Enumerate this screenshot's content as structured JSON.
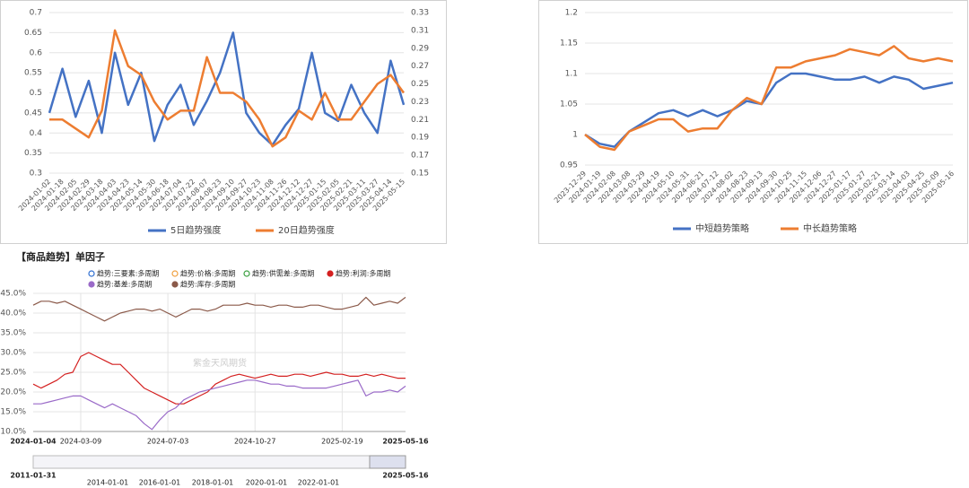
{
  "chart_data": [
    {
      "type": "line",
      "categories": [
        "2024-01-02",
        "2024-01-18",
        "2024-02-05",
        "2024-02-29",
        "2024-03-18",
        "2024-04-03",
        "2024-04-23",
        "2024-05-14",
        "2024-05-30",
        "2024-06-18",
        "2024-07-04",
        "2024-07-22",
        "2024-08-07",
        "2024-08-23",
        "2024-09-10",
        "2024-09-27",
        "2024-10-23",
        "2024-11-08",
        "2024-11-26",
        "2024-12-12",
        "2024-12-27",
        "2025-01-15",
        "2025-02-05",
        "2025-02-21",
        "2025-03-11",
        "2025-03-27",
        "2025-04-14",
        "2025-05-15"
      ],
      "series": [
        {
          "name": "5日趋势强度",
          "color": "#4472c4",
          "values": [
            0.45,
            0.56,
            0.44,
            0.53,
            0.4,
            0.6,
            0.47,
            0.55,
            0.38,
            0.47,
            0.52,
            0.42,
            0.48,
            0.55,
            0.65,
            0.45,
            0.4,
            0.37,
            0.42,
            0.46,
            0.6,
            0.45,
            0.43,
            0.52,
            0.45,
            0.4,
            0.58,
            0.47
          ]
        },
        {
          "name": "20日趋势强度",
          "color": "#ed7d31",
          "axis": "y2",
          "values": [
            0.21,
            0.21,
            0.2,
            0.19,
            0.22,
            0.31,
            0.27,
            0.26,
            0.23,
            0.21,
            0.22,
            0.22,
            0.28,
            0.24,
            0.24,
            0.23,
            0.21,
            0.18,
            0.19,
            0.22,
            0.21,
            0.24,
            0.21,
            0.21,
            0.23,
            0.25,
            0.26,
            0.24
          ]
        }
      ],
      "ylim": [
        0.3,
        0.7
      ],
      "yticks": [
        0.3,
        0.35,
        0.4,
        0.45,
        0.5,
        0.55,
        0.6,
        0.65,
        0.7
      ],
      "y2lim": [
        0.15,
        0.33
      ],
      "y2ticks": [
        0.15,
        0.17,
        0.19,
        0.21,
        0.23,
        0.25,
        0.27,
        0.29,
        0.31,
        0.33
      ],
      "grid": true,
      "legend": "bottom"
    },
    {
      "type": "line",
      "categories": [
        "2023-12-29",
        "2024-01-19",
        "2024-02-08",
        "2024-03-08",
        "2024-03-29",
        "2024-04-19",
        "2024-05-10",
        "2024-05-31",
        "2024-06-21",
        "2024-07-12",
        "2024-08-02",
        "2024-08-23",
        "2024-09-13",
        "2024-09-30",
        "2024-10-25",
        "2024-11-15",
        "2024-12-06",
        "2024-12-27",
        "2025-01-17",
        "2025-01-27",
        "2025-02-21",
        "2025-03-14",
        "2025-04-03",
        "2025-04-25",
        "2025-05-09",
        "2025-05-16"
      ],
      "series": [
        {
          "name": "中短趋势策略",
          "color": "#4472c4",
          "values": [
            1,
            0.985,
            0.98,
            1.005,
            1.02,
            1.035,
            1.04,
            1.03,
            1.04,
            1.03,
            1.04,
            1.055,
            1.05,
            1.085,
            1.1,
            1.1,
            1.095,
            1.09,
            1.09,
            1.095,
            1.085,
            1.095,
            1.09,
            1.075,
            1.08,
            1.085
          ]
        },
        {
          "name": "中长趋势策略",
          "color": "#ed7d31",
          "values": [
            1,
            0.98,
            0.975,
            1.005,
            1.015,
            1.025,
            1.025,
            1.005,
            1.01,
            1.01,
            1.04,
            1.06,
            1.05,
            1.11,
            1.11,
            1.12,
            1.125,
            1.13,
            1.14,
            1.135,
            1.13,
            1.145,
            1.125,
            1.12,
            1.125,
            1.12
          ]
        }
      ],
      "ylim": [
        0.95,
        1.2
      ],
      "yticks": [
        0.95,
        1,
        1.05,
        1.1,
        1.15,
        1.2
      ],
      "grid": true,
      "legend": "bottom"
    },
    {
      "type": "line",
      "title": "【商品趋势】单因子",
      "categories": [
        "2024-01-04",
        null,
        null,
        null,
        null,
        null,
        "2024-03-09",
        null,
        null,
        null,
        null,
        null,
        null,
        null,
        null,
        null,
        null,
        "2024-07-03",
        null,
        null,
        null,
        null,
        null,
        null,
        null,
        null,
        null,
        null,
        "2024-10-27",
        null,
        null,
        null,
        null,
        null,
        null,
        null,
        null,
        null,
        null,
        "2025-02-19",
        null,
        null,
        null,
        null,
        null,
        null,
        null,
        "2025-05-16"
      ],
      "series": [
        {
          "name": "趋势:三要素:多周期",
          "color": "#2f6fd1",
          "visible": false
        },
        {
          "name": "趋势:价格:多周期",
          "color": "#f0a040",
          "visible": false
        },
        {
          "name": "趋势:供需差:多周期",
          "color": "#3aa040",
          "visible": false
        },
        {
          "name": "趋势:利润:多周期",
          "color": "#d42020",
          "values": [
            22,
            21,
            22,
            23,
            24.5,
            25,
            29,
            30,
            29,
            28,
            27,
            27,
            25,
            23,
            21,
            20,
            19,
            18,
            17,
            17,
            18,
            19,
            20,
            22,
            23,
            24,
            24.5,
            24,
            23.5,
            24,
            24.5,
            24,
            24,
            24.5,
            24.5,
            24,
            24.5,
            25,
            24.5,
            24.5,
            24,
            24,
            24.5,
            24,
            24.5,
            24,
            23.5,
            23.5
          ]
        },
        {
          "name": "趋势:基差:多周期",
          "color": "#9a6ac8",
          "values": [
            17,
            17,
            17.5,
            18,
            18.5,
            19,
            19,
            18,
            17,
            16,
            17,
            16,
            15,
            14,
            12,
            10.5,
            13,
            15,
            16,
            18,
            19,
            20,
            20.5,
            21,
            21.5,
            22,
            22.5,
            23,
            23,
            22.5,
            22,
            22,
            21.5,
            21.5,
            21,
            21,
            21,
            21,
            21.5,
            22,
            22.5,
            23,
            19,
            20,
            20,
            20.5,
            20,
            21.5
          ]
        },
        {
          "name": "趋势:库存:多周期",
          "color": "#8b5a4a",
          "values": [
            42,
            43,
            43,
            42.5,
            43,
            42,
            41,
            40,
            39,
            38,
            39,
            40,
            40.5,
            41,
            41,
            40.5,
            41,
            40,
            39,
            40,
            41,
            41,
            40.5,
            41,
            42,
            42,
            42,
            42.5,
            42,
            42,
            41.5,
            42,
            42,
            41.5,
            41.5,
            42,
            42,
            41.5,
            41,
            41,
            41.5,
            42,
            44,
            42,
            42.5,
            43,
            42.5,
            44
          ]
        }
      ],
      "ylim": [
        10,
        45
      ],
      "yticks": [
        {
          "value": 10,
          "label": "10.0%"
        },
        {
          "value": 15,
          "label": "15.0%"
        },
        {
          "value": 20,
          "label": "20.0%"
        },
        {
          "value": 25,
          "label": "25.0%"
        },
        {
          "value": 30,
          "label": "30.0%"
        },
        {
          "value": 35,
          "label": "35.0%"
        },
        {
          "value": 40,
          "label": "40.0%"
        },
        {
          "value": 45,
          "label": "45.0%"
        }
      ],
      "grid": true,
      "legend": "top",
      "watermark": "紫金天风期货",
      "navigator_labels": [
        "2011-01-31",
        "2014-01-01",
        "2016-01-01",
        "2018-01-01",
        "2020-01-01",
        "2022-01-01",
        "2025-05-16"
      ]
    }
  ]
}
